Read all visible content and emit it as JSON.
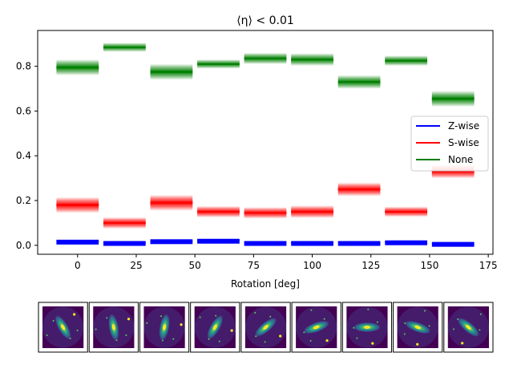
{
  "chart_data": {
    "type": "bar",
    "title": "⟨η⟩ < 0.01",
    "xlabel": "Rotation [deg]",
    "ylabel": "",
    "xlim": [
      -17,
      177
    ],
    "ylim": [
      -0.04,
      0.96
    ],
    "xticks": [
      0,
      25,
      50,
      75,
      100,
      125,
      150,
      175
    ],
    "yticks": [
      0.0,
      0.2,
      0.4,
      0.6,
      0.8
    ],
    "x": [
      0,
      20,
      40,
      60,
      80,
      100,
      120,
      140,
      160
    ],
    "bin_width": 18,
    "legend_position": "center-right",
    "series": [
      {
        "name": "Z-wise",
        "color": "#0000ff",
        "values": [
          0.018,
          0.012,
          0.02,
          0.022,
          0.012,
          0.012,
          0.012,
          0.015,
          0.008
        ],
        "spread": [
          0.012,
          0.01,
          0.012,
          0.012,
          0.01,
          0.01,
          0.012,
          0.01,
          0.01
        ]
      },
      {
        "name": "S-wise",
        "color": "#ff0000",
        "values": [
          0.18,
          0.1,
          0.19,
          0.15,
          0.145,
          0.15,
          0.25,
          0.15,
          0.33
        ],
        "spread": [
          0.07,
          0.05,
          0.07,
          0.05,
          0.05,
          0.055,
          0.06,
          0.045,
          0.06
        ]
      },
      {
        "name": "None",
        "color": "#008000",
        "values": [
          0.795,
          0.885,
          0.775,
          0.81,
          0.835,
          0.83,
          0.73,
          0.825,
          0.655
        ],
        "spread": [
          0.07,
          0.04,
          0.07,
          0.04,
          0.05,
          0.055,
          0.06,
          0.045,
          0.07
        ]
      }
    ]
  },
  "thumbnails": {
    "count": 9,
    "rotations": [
      0,
      20,
      40,
      60,
      80,
      100,
      120,
      140,
      160
    ],
    "colors": {
      "background": "#440154",
      "glow": "#21918c",
      "core": "#fde725"
    }
  }
}
